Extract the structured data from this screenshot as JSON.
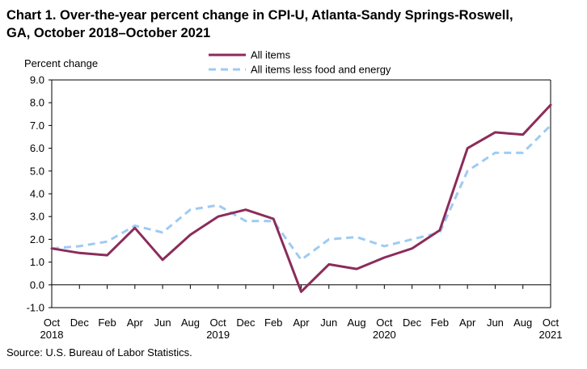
{
  "title_lines": [
    "Chart 1. Over-the-year percent change in CPI-U, Atlanta-Sandy Springs-Roswell,",
    "GA, October 2018–October 2021"
  ],
  "source": "Source: U.S. Bureau of Labor Statistics.",
  "chart_data": {
    "type": "line",
    "title": "Chart 1. Over-the-year percent change in CPI-U, Atlanta-Sandy Springs-Roswell, GA, October 2018–October 2021",
    "ylabel": "Percent change",
    "xlabel": "",
    "ylim": [
      -1.0,
      9.0
    ],
    "y_ticks": [
      "9.0",
      "8.0",
      "7.0",
      "6.0",
      "5.0",
      "4.0",
      "3.0",
      "2.0",
      "1.0",
      "0.0",
      "-1.0"
    ],
    "categories": [
      "Oct",
      "Dec",
      "Feb",
      "Apr",
      "Jun",
      "Aug",
      "Oct",
      "Dec",
      "Feb",
      "Apr",
      "Jun",
      "Aug",
      "Oct",
      "Dec",
      "Feb",
      "Apr",
      "Jun",
      "Aug",
      "Oct"
    ],
    "year_labels": [
      {
        "index": 0,
        "label": "2018"
      },
      {
        "index": 6,
        "label": "2019"
      },
      {
        "index": 12,
        "label": "2020"
      },
      {
        "index": 18,
        "label": "2021"
      }
    ],
    "grid": false,
    "legend_position": "top-center",
    "series": [
      {
        "name": "All items",
        "color": "#8b2c5a",
        "style": "solid",
        "values": [
          1.6,
          1.4,
          1.3,
          2.5,
          1.1,
          2.2,
          3.0,
          3.3,
          2.9,
          -0.3,
          0.9,
          0.7,
          1.2,
          1.6,
          2.4,
          6.0,
          6.7,
          6.6,
          7.9
        ]
      },
      {
        "name": "All items less food and energy",
        "color": "#9ecbf2",
        "style": "dashed",
        "values": [
          1.6,
          1.7,
          1.9,
          2.6,
          2.3,
          3.3,
          3.5,
          2.8,
          2.8,
          1.1,
          2.0,
          2.1,
          1.7,
          2.0,
          2.3,
          5.0,
          5.8,
          5.8,
          7.0
        ]
      }
    ]
  }
}
